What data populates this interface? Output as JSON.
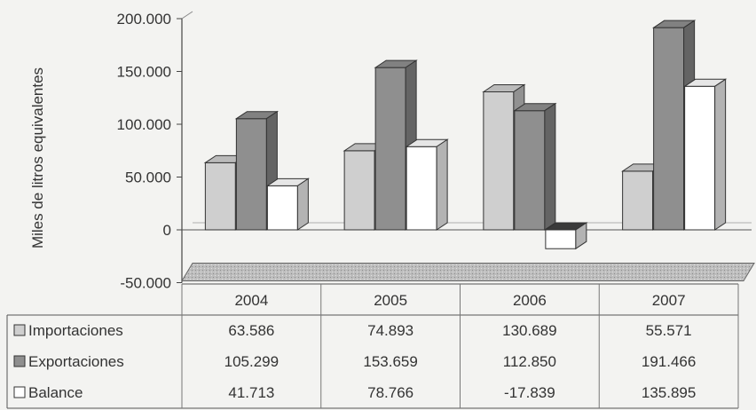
{
  "chart_data": {
    "type": "bar",
    "ylabel": "Miles de litros equivalentes",
    "ylim": [
      -50000,
      200000
    ],
    "yticks": [
      -50000,
      0,
      50000,
      100000,
      150000,
      200000
    ],
    "ytick_labels": [
      "-50.000",
      "0",
      "50.000",
      "100.000",
      "150.000",
      "200.000"
    ],
    "categories": [
      "2004",
      "2005",
      "2006",
      "2007"
    ],
    "series": [
      {
        "name": "Importaciones",
        "values": [
          63586,
          74893,
          130689,
          55571
        ],
        "value_labels": [
          "63.586",
          "74.893",
          "130.689",
          "55.571"
        ],
        "color": "#cfcfcf"
      },
      {
        "name": "Exportaciones",
        "values": [
          105299,
          153659,
          112850,
          191466
        ],
        "value_labels": [
          "105.299",
          "153.659",
          "112.850",
          "191.466"
        ],
        "color": "#8f8f8f"
      },
      {
        "name": "Balance",
        "values": [
          41713,
          78766,
          -17839,
          135895
        ],
        "value_labels": [
          "41.713",
          "78.766",
          "-17.839",
          "135.895"
        ],
        "color": "#ffffff"
      }
    ],
    "legend": "data table rows",
    "grid": false
  }
}
